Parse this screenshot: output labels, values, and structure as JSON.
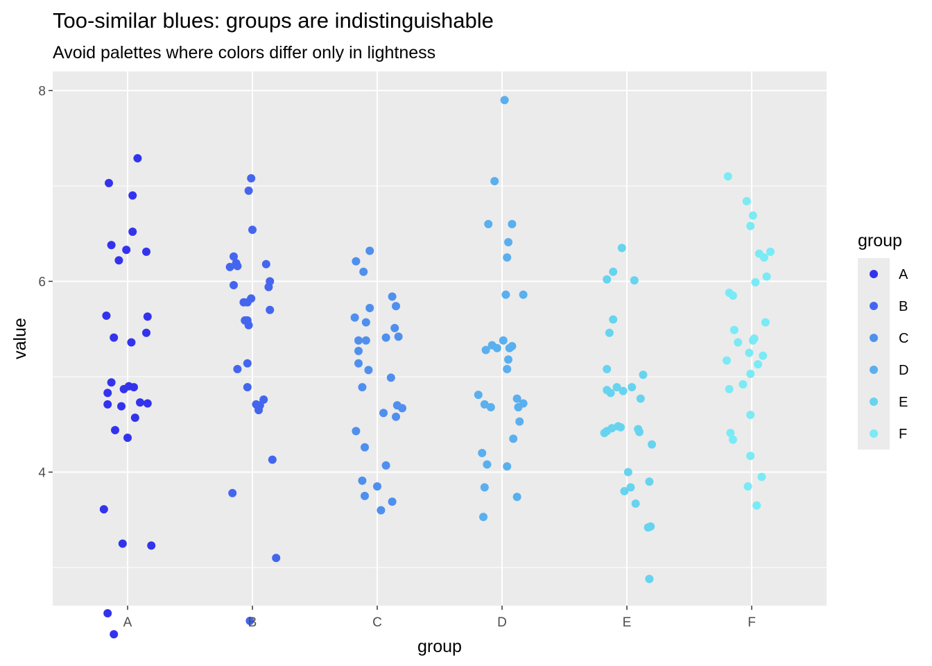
{
  "chart_data": {
    "type": "scatter",
    "title": "Too-similar blues: groups are indistinguishable",
    "subtitle": "Avoid palettes where colors differ only in lightness",
    "xlabel": "group",
    "ylabel": "value",
    "categories": [
      "A",
      "B",
      "C",
      "D",
      "E",
      "F"
    ],
    "ylim": [
      2.6,
      8.2
    ],
    "yticks": [
      4,
      6,
      8
    ],
    "grid": true,
    "legend": {
      "title": "group",
      "position": "right"
    },
    "colors": {
      "A": "#3333ee",
      "B": "#4466ee",
      "C": "#4f8fee",
      "D": "#5aafee",
      "E": "#66d4ee",
      "F": "#7aeaf5"
    },
    "series": [
      {
        "name": "A",
        "points": [
          [
            -0.15,
            7.03
          ],
          [
            -0.13,
            6.38
          ],
          [
            -0.07,
            6.22
          ],
          [
            -0.01,
            6.33
          ],
          [
            0.04,
            6.9
          ],
          [
            0.04,
            6.52
          ],
          [
            0.08,
            7.29
          ],
          [
            0.15,
            6.31
          ],
          [
            -0.17,
            5.64
          ],
          [
            -0.11,
            5.41
          ],
          [
            0.03,
            5.36
          ],
          [
            0.16,
            5.63
          ],
          [
            0.15,
            5.46
          ],
          [
            -0.13,
            4.94
          ],
          [
            -0.16,
            4.83
          ],
          [
            -0.03,
            4.87
          ],
          [
            0.01,
            4.9
          ],
          [
            0.05,
            4.89
          ],
          [
            -0.16,
            4.71
          ],
          [
            -0.05,
            4.69
          ],
          [
            0.1,
            4.73
          ],
          [
            0.16,
            4.72
          ],
          [
            0.06,
            4.57
          ],
          [
            -0.1,
            4.44
          ],
          [
            0.0,
            4.36
          ],
          [
            -0.19,
            3.61
          ],
          [
            -0.04,
            3.25
          ],
          [
            0.19,
            3.23
          ],
          [
            -0.16,
            2.52
          ],
          [
            -0.11,
            2.3
          ]
        ]
      },
      {
        "name": "B",
        "points": [
          [
            -0.01,
            7.08
          ],
          [
            -0.03,
            6.95
          ],
          [
            0.0,
            6.54
          ],
          [
            -0.15,
            6.26
          ],
          [
            -0.13,
            6.19
          ],
          [
            -0.18,
            6.15
          ],
          [
            -0.12,
            6.16
          ],
          [
            0.11,
            6.18
          ],
          [
            0.14,
            6.0
          ],
          [
            -0.15,
            5.96
          ],
          [
            0.13,
            5.94
          ],
          [
            -0.01,
            5.82
          ],
          [
            -0.07,
            5.78
          ],
          [
            -0.04,
            5.78
          ],
          [
            0.14,
            5.7
          ],
          [
            -0.06,
            5.59
          ],
          [
            -0.03,
            5.54
          ],
          [
            -0.04,
            5.59
          ],
          [
            -0.04,
            5.14
          ],
          [
            -0.12,
            5.08
          ],
          [
            -0.04,
            4.89
          ],
          [
            0.09,
            4.76
          ],
          [
            0.03,
            4.71
          ],
          [
            0.06,
            4.7
          ],
          [
            0.05,
            4.7
          ],
          [
            0.05,
            4.68
          ],
          [
            0.05,
            4.65
          ],
          [
            0.16,
            4.13
          ],
          [
            -0.16,
            3.78
          ],
          [
            0.19,
            3.1
          ],
          [
            -0.02,
            2.44
          ]
        ]
      },
      {
        "name": "C",
        "points": [
          [
            -0.06,
            6.32
          ],
          [
            -0.17,
            6.21
          ],
          [
            -0.11,
            6.1
          ],
          [
            0.12,
            5.84
          ],
          [
            0.15,
            5.74
          ],
          [
            -0.06,
            5.72
          ],
          [
            -0.18,
            5.62
          ],
          [
            -0.09,
            5.57
          ],
          [
            0.14,
            5.51
          ],
          [
            0.17,
            5.42
          ],
          [
            -0.15,
            5.38
          ],
          [
            -0.09,
            5.38
          ],
          [
            0.07,
            5.41
          ],
          [
            -0.15,
            5.27
          ],
          [
            -0.15,
            5.14
          ],
          [
            -0.07,
            5.07
          ],
          [
            0.11,
            4.99
          ],
          [
            -0.12,
            4.89
          ],
          [
            0.16,
            4.7
          ],
          [
            0.2,
            4.67
          ],
          [
            0.05,
            4.62
          ],
          [
            0.15,
            4.58
          ],
          [
            -0.17,
            4.43
          ],
          [
            -0.1,
            4.26
          ],
          [
            0.07,
            4.07
          ],
          [
            -0.12,
            3.91
          ],
          [
            0.0,
            3.85
          ],
          [
            -0.1,
            3.75
          ],
          [
            0.12,
            3.69
          ],
          [
            0.03,
            3.6
          ]
        ]
      },
      {
        "name": "D",
        "points": [
          [
            0.02,
            7.9
          ],
          [
            -0.06,
            7.05
          ],
          [
            -0.11,
            6.6
          ],
          [
            0.08,
            6.6
          ],
          [
            0.05,
            6.41
          ],
          [
            0.04,
            6.25
          ],
          [
            0.03,
            5.86
          ],
          [
            0.17,
            5.86
          ],
          [
            0.01,
            5.38
          ],
          [
            -0.08,
            5.33
          ],
          [
            -0.04,
            5.3
          ],
          [
            0.06,
            5.3
          ],
          [
            0.08,
            5.32
          ],
          [
            -0.13,
            5.28
          ],
          [
            0.05,
            5.18
          ],
          [
            0.04,
            5.08
          ],
          [
            -0.19,
            4.81
          ],
          [
            -0.14,
            4.71
          ],
          [
            -0.09,
            4.68
          ],
          [
            0.12,
            4.77
          ],
          [
            0.17,
            4.72
          ],
          [
            0.13,
            4.68
          ],
          [
            0.14,
            4.53
          ],
          [
            0.09,
            4.35
          ],
          [
            -0.16,
            4.2
          ],
          [
            -0.12,
            4.08
          ],
          [
            0.04,
            4.06
          ],
          [
            -0.14,
            3.84
          ],
          [
            0.12,
            3.74
          ],
          [
            -0.15,
            3.53
          ]
        ]
      },
      {
        "name": "E",
        "points": [
          [
            -0.04,
            6.35
          ],
          [
            -0.11,
            6.1
          ],
          [
            -0.16,
            6.02
          ],
          [
            0.06,
            6.01
          ],
          [
            -0.11,
            5.6
          ],
          [
            -0.14,
            5.46
          ],
          [
            -0.16,
            5.08
          ],
          [
            0.13,
            5.02
          ],
          [
            -0.16,
            4.86
          ],
          [
            -0.13,
            4.83
          ],
          [
            -0.08,
            4.89
          ],
          [
            -0.03,
            4.85
          ],
          [
            0.04,
            4.89
          ],
          [
            0.11,
            4.77
          ],
          [
            -0.07,
            4.48
          ],
          [
            -0.05,
            4.47
          ],
          [
            0.09,
            4.45
          ],
          [
            0.1,
            4.42
          ],
          [
            -0.12,
            4.46
          ],
          [
            -0.18,
            4.41
          ],
          [
            -0.16,
            4.43
          ],
          [
            0.2,
            4.29
          ],
          [
            0.01,
            4.0
          ],
          [
            0.18,
            3.9
          ],
          [
            0.03,
            3.84
          ],
          [
            -0.02,
            3.8
          ],
          [
            0.07,
            3.67
          ],
          [
            0.17,
            3.42
          ],
          [
            0.19,
            3.43
          ],
          [
            0.18,
            2.88
          ]
        ]
      },
      {
        "name": "F",
        "points": [
          [
            -0.19,
            7.1
          ],
          [
            -0.04,
            6.84
          ],
          [
            0.01,
            6.69
          ],
          [
            -0.01,
            6.58
          ],
          [
            0.06,
            6.29
          ],
          [
            0.1,
            6.25
          ],
          [
            0.15,
            6.31
          ],
          [
            0.03,
            5.99
          ],
          [
            0.12,
            6.05
          ],
          [
            -0.18,
            5.88
          ],
          [
            -0.15,
            5.85
          ],
          [
            0.11,
            5.57
          ],
          [
            -0.14,
            5.49
          ],
          [
            -0.11,
            5.36
          ],
          [
            0.02,
            5.4
          ],
          [
            0.01,
            5.38
          ],
          [
            -0.02,
            5.25
          ],
          [
            0.09,
            5.22
          ],
          [
            -0.2,
            5.17
          ],
          [
            0.05,
            5.13
          ],
          [
            -0.01,
            5.03
          ],
          [
            -0.07,
            4.92
          ],
          [
            -0.18,
            4.87
          ],
          [
            -0.01,
            4.6
          ],
          [
            -0.17,
            4.41
          ],
          [
            -0.15,
            4.34
          ],
          [
            -0.01,
            4.17
          ],
          [
            0.08,
            3.95
          ],
          [
            -0.03,
            3.85
          ],
          [
            0.04,
            3.65
          ]
        ]
      }
    ]
  }
}
